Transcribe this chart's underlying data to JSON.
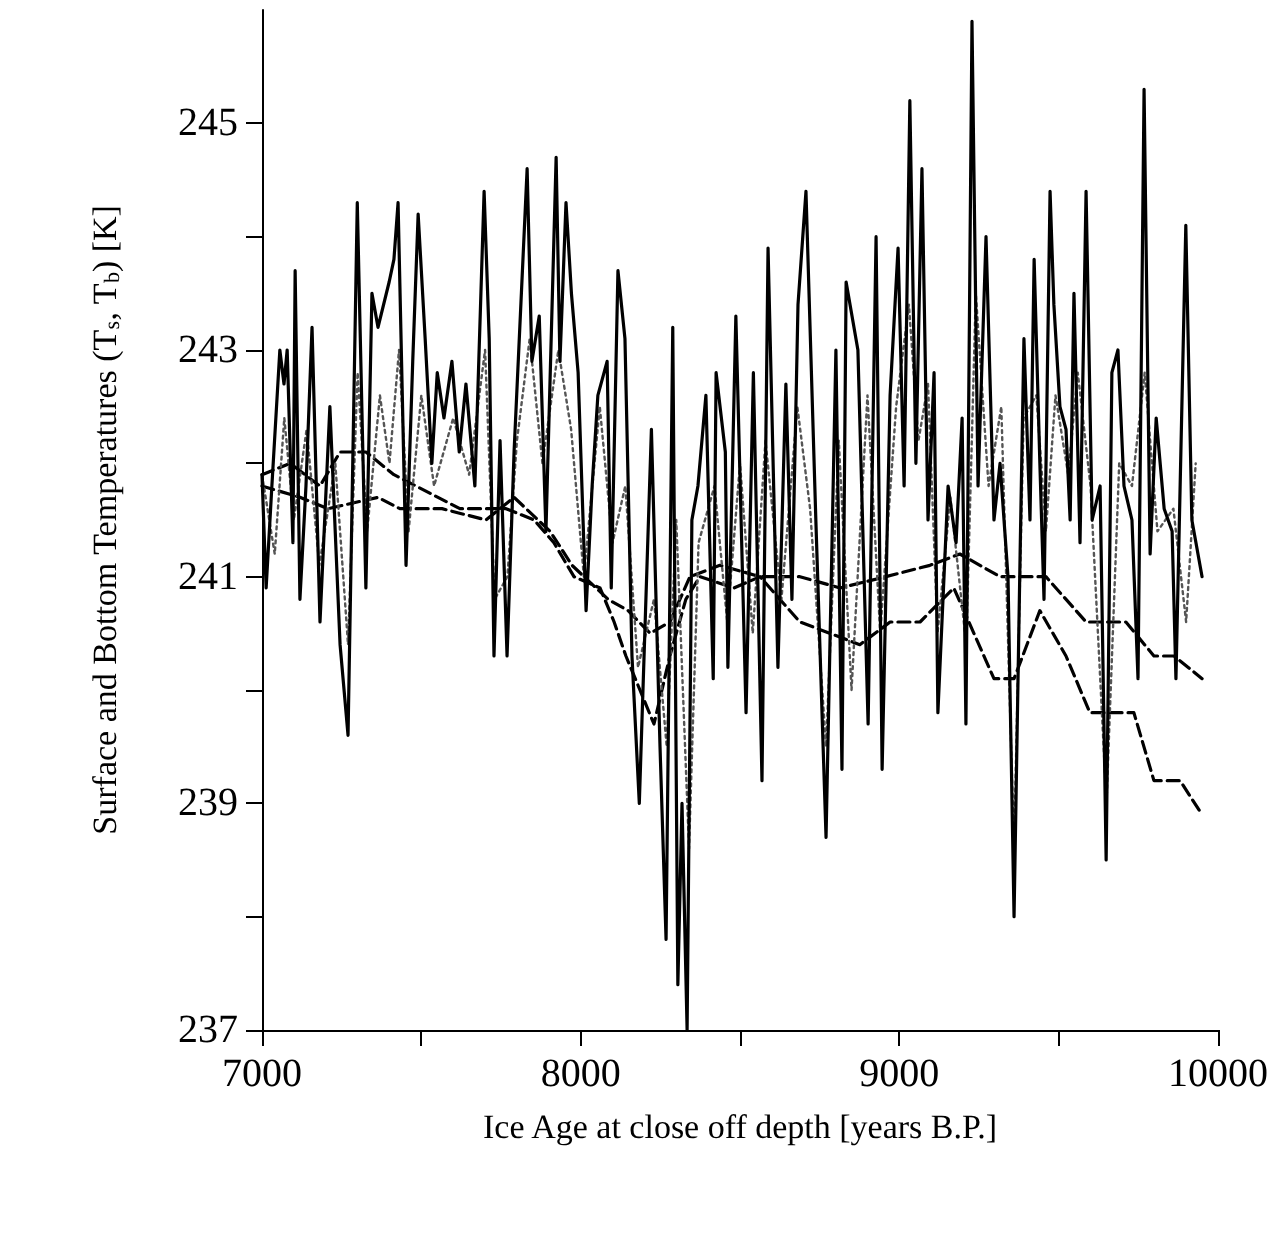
{
  "chart_data": {
    "type": "line",
    "xlabel": "Ice Age at close off depth [years B.P.]",
    "ylabel": "Surface and Bottom Temperatures (T$_{s}$, T$_{b}$) [K]",
    "xlim": [
      7000,
      10000
    ],
    "xticks": [
      7000,
      {
        "value": 7500,
        "label": null
      },
      8000,
      {
        "value": 8500,
        "label": null
      },
      9000,
      {
        "value": 9500,
        "label": null
      },
      10000
    ],
    "ylim": [
      237,
      246
    ],
    "yticks": [
      237,
      {
        "value": 238,
        "label": null
      },
      239,
      {
        "value": 240,
        "label": null
      },
      241,
      {
        "value": 242,
        "label": null
      },
      243,
      {
        "value": 244,
        "label": null
      },
      245
    ],
    "grid": false,
    "marker": "none",
    "series": [
      {
        "color": "#000000",
        "line_style": "solid",
        "x": [
          7000,
          7013,
          7031,
          7056,
          7069,
          7079,
          7097,
          7104,
          7119,
          7138,
          7157,
          7182,
          7213,
          7245,
          7270,
          7299,
          7326,
          7345,
          7364,
          7399,
          7414,
          7427,
          7452,
          7473,
          7490,
          7512,
          7533,
          7550,
          7571,
          7596,
          7619,
          7640,
          7668,
          7697,
          7713,
          7728,
          7747,
          7769,
          7791,
          7832,
          7847,
          7870,
          7891,
          7923,
          7935,
          7954,
          7971,
          7992,
          8017,
          8036,
          8054,
          8083,
          8096,
          8117,
          8139,
          8161,
          8184,
          8222,
          8249,
          8268,
          8289,
          8305,
          8318,
          8334,
          8349,
          8368,
          8393,
          8416,
          8425,
          8454,
          8462,
          8487,
          8519,
          8542,
          8569,
          8588,
          8619,
          8644,
          8663,
          8682,
          8707,
          8738,
          8770,
          8801,
          8820,
          8833,
          8870,
          8902,
          8927,
          8946,
          8971,
          8996,
          9015,
          9033,
          9052,
          9071,
          9090,
          9109,
          9121,
          9153,
          9178,
          9197,
          9209,
          9228,
          9247,
          9272,
          9297,
          9316,
          9341,
          9360,
          9379,
          9391,
          9410,
          9423,
          9441,
          9454,
          9473,
          9485,
          9504,
          9523,
          9536,
          9548,
          9567,
          9586,
          9605,
          9630,
          9649,
          9667,
          9686,
          9705,
          9730,
          9749,
          9768,
          9787,
          9806,
          9831,
          9856,
          9868,
          9899,
          9918,
          9950
        ],
        "values": [
          241.9,
          240.9,
          241.8,
          243.0,
          242.7,
          243.0,
          241.3,
          243.7,
          240.8,
          241.8,
          243.2,
          240.6,
          242.5,
          240.4,
          239.6,
          244.3,
          240.9,
          243.5,
          243.2,
          243.6,
          243.8,
          244.3,
          241.1,
          242.9,
          244.2,
          243.1,
          242.0,
          242.8,
          242.4,
          242.9,
          242.1,
          242.7,
          241.8,
          244.4,
          243.1,
          240.3,
          242.2,
          240.3,
          242.1,
          244.6,
          242.9,
          243.3,
          241.4,
          244.7,
          242.9,
          244.3,
          243.5,
          242.8,
          240.7,
          241.8,
          242.6,
          242.9,
          240.9,
          243.7,
          243.1,
          240.3,
          239.0,
          242.3,
          239.5,
          237.8,
          243.2,
          237.4,
          239.0,
          237.0,
          241.5,
          241.8,
          242.6,
          240.1,
          242.8,
          242.1,
          240.2,
          243.3,
          239.8,
          242.8,
          239.2,
          243.9,
          240.2,
          242.7,
          240.8,
          243.4,
          244.4,
          241.5,
          238.7,
          243.0,
          239.3,
          243.6,
          243.0,
          239.7,
          244.0,
          239.3,
          242.6,
          243.9,
          241.8,
          245.2,
          242.0,
          244.6,
          241.5,
          242.8,
          239.8,
          241.8,
          241.3,
          242.4,
          239.7,
          245.9,
          241.8,
          244.0,
          241.5,
          242.0,
          241.0,
          238.0,
          241.2,
          243.1,
          241.5,
          243.8,
          242.0,
          240.8,
          244.4,
          243.4,
          242.5,
          242.3,
          241.5,
          243.5,
          241.3,
          244.4,
          241.5,
          241.8,
          238.5,
          242.8,
          243.0,
          241.8,
          241.5,
          240.1,
          245.3,
          241.2,
          242.4,
          241.6,
          241.4,
          240.1,
          244.1,
          241.5,
          241.0
        ]
      },
      {
        "color": "#555555",
        "line_style": "dotted",
        "x": [
          7000,
          7040,
          7070,
          7100,
          7140,
          7180,
          7230,
          7270,
          7300,
          7330,
          7370,
          7400,
          7430,
          7460,
          7500,
          7540,
          7600,
          7650,
          7700,
          7730,
          7770,
          7800,
          7840,
          7880,
          7930,
          7970,
          8010,
          8060,
          8100,
          8140,
          8180,
          8230,
          8270,
          8300,
          8340,
          8370,
          8420,
          8460,
          8500,
          8540,
          8580,
          8630,
          8680,
          8720,
          8770,
          8810,
          8850,
          8900,
          8940,
          8990,
          9030,
          9060,
          9090,
          9120,
          9160,
          9210,
          9240,
          9280,
          9320,
          9360,
          9390,
          9430,
          9460,
          9490,
          9530,
          9560,
          9600,
          9650,
          9690,
          9730,
          9770,
          9810,
          9860,
          9900,
          9930
        ],
        "values": [
          241.9,
          241.2,
          242.4,
          241.5,
          242.3,
          241.1,
          242.0,
          240.4,
          242.8,
          241.4,
          242.6,
          242.0,
          243.0,
          241.4,
          242.6,
          241.8,
          242.4,
          241.9,
          243.0,
          240.8,
          241.0,
          242.2,
          243.1,
          242.0,
          243.0,
          242.3,
          241.0,
          242.5,
          241.3,
          241.8,
          240.2,
          240.8,
          239.5,
          241.5,
          238.6,
          241.3,
          241.8,
          240.6,
          242.0,
          240.5,
          242.2,
          240.8,
          242.5,
          241.6,
          239.5,
          242.2,
          240.0,
          242.6,
          240.5,
          242.5,
          243.4,
          242.2,
          242.7,
          240.5,
          241.7,
          240.4,
          243.5,
          241.8,
          242.5,
          238.6,
          242.4,
          242.6,
          241.4,
          242.6,
          241.9,
          242.8,
          241.8,
          239.0,
          242.0,
          241.8,
          242.8,
          241.4,
          241.6,
          240.6,
          242.0
        ]
      },
      {
        "color": "#000000",
        "line_style": "dashed",
        "x": [
          7000,
          7119,
          7207,
          7364,
          7433,
          7565,
          7703,
          7791,
          7904,
          7973,
          8086,
          8149,
          8218,
          8280,
          8343,
          8437,
          8563,
          8688,
          8814,
          8958,
          9096,
          9190,
          9316,
          9460,
          9586,
          9711,
          9799,
          9862,
          9950
        ],
        "values": [
          241.8,
          241.7,
          241.6,
          241.7,
          241.6,
          241.6,
          241.5,
          241.7,
          241.4,
          241.1,
          240.8,
          240.7,
          240.5,
          240.6,
          241.0,
          241.1,
          241.0,
          241.0,
          240.9,
          241.0,
          241.1,
          241.2,
          241.0,
          241.0,
          240.6,
          240.6,
          240.3,
          240.3,
          240.1
        ]
      },
      {
        "color": "#000000",
        "line_style": "dashed",
        "x": [
          7000,
          7088,
          7182,
          7245,
          7326,
          7414,
          7483,
          7621,
          7684,
          7766,
          7854,
          7916,
          7979,
          8061,
          8105,
          8142,
          8186,
          8230,
          8280,
          8330,
          8374,
          8481,
          8563,
          8625,
          8688,
          8782,
          8876,
          8971,
          9065,
          9171,
          9234,
          9297,
          9360,
          9441,
          9523,
          9598,
          9674,
          9736,
          9799,
          9881,
          9950
        ],
        "values": [
          241.9,
          242.0,
          241.8,
          242.1,
          242.1,
          241.9,
          241.8,
          241.6,
          241.6,
          241.6,
          241.5,
          241.3,
          241.0,
          240.9,
          240.6,
          240.3,
          240.0,
          239.7,
          240.3,
          240.8,
          241.0,
          240.9,
          241.0,
          240.8,
          240.6,
          240.5,
          240.4,
          240.6,
          240.6,
          240.9,
          240.5,
          240.1,
          240.1,
          240.7,
          240.3,
          239.8,
          239.8,
          239.8,
          239.2,
          239.2,
          238.9
        ]
      }
    ]
  }
}
